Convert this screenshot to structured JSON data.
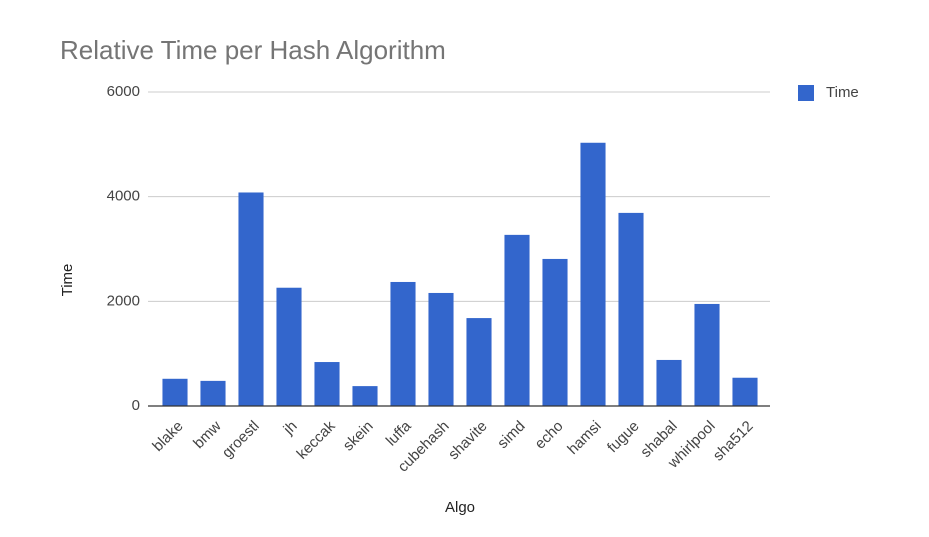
{
  "chart_data": {
    "type": "bar",
    "title": "Relative Time per Hash Algorithm",
    "x_label": "Algo",
    "y_label": "Time",
    "categories": [
      "blake",
      "bmw",
      "groestl",
      "jh",
      "keccak",
      "skein",
      "luffa",
      "cubehash",
      "shavite",
      "simd",
      "echo",
      "hamsi",
      "fugue",
      "shabal",
      "whirlpool",
      "sha512"
    ],
    "series": [
      {
        "name": "Time",
        "color": "#3366cc",
        "values": [
          520,
          480,
          4080,
          2260,
          840,
          380,
          2370,
          2160,
          1680,
          3270,
          2810,
          5030,
          3690,
          880,
          1950,
          540
        ]
      }
    ],
    "ylim": [
      0,
      6000
    ],
    "yticks": [
      0,
      2000,
      4000,
      6000
    ],
    "grid": true,
    "legend": "right"
  }
}
